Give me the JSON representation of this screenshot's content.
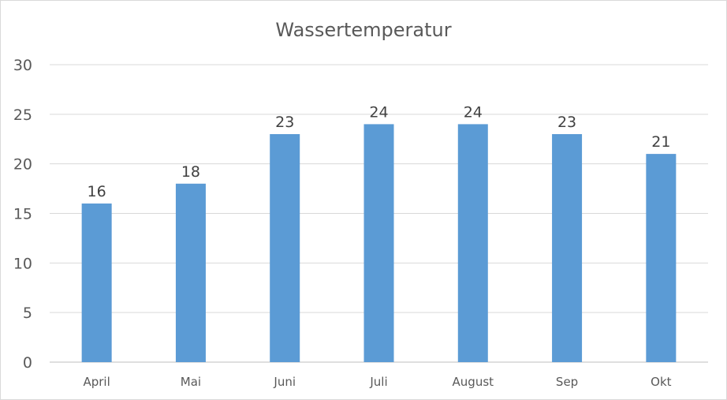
{
  "chart_data": {
    "type": "bar",
    "title": "Wassertemperatur",
    "xlabel": "",
    "ylabel": "",
    "categories": [
      "April",
      "Mai",
      "Juni",
      "Juli",
      "August",
      "Sep",
      "Okt"
    ],
    "values": [
      16,
      18,
      23,
      24,
      24,
      23,
      21
    ],
    "data_labels": [
      "16",
      "18",
      "23",
      "24",
      "24",
      "23",
      "21"
    ],
    "ylim": [
      0,
      30
    ],
    "yticks": [
      0,
      5,
      10,
      15,
      20,
      25,
      30
    ],
    "ytick_labels": [
      "0",
      "5",
      "10",
      "15",
      "20",
      "25",
      "30"
    ],
    "grid": true,
    "legend": "none",
    "bar_color": "#5b9bd5"
  }
}
